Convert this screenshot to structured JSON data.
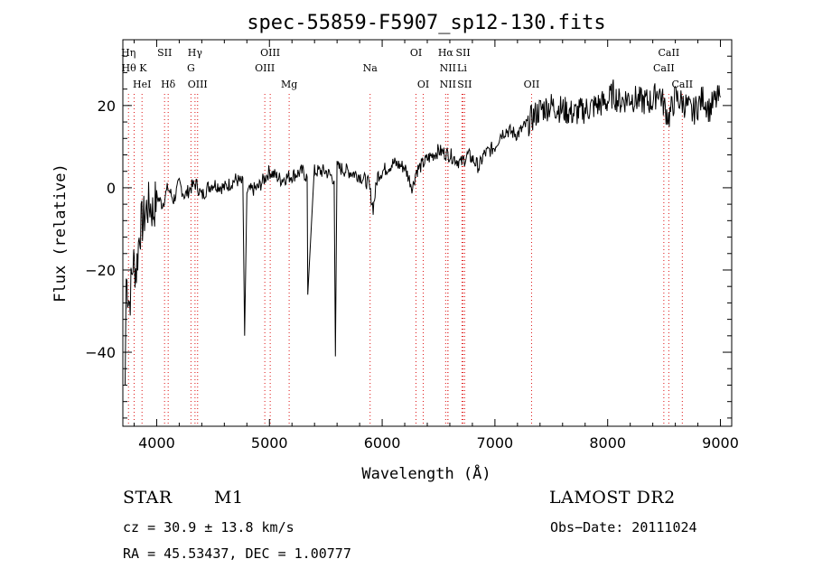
{
  "chart_data": {
    "type": "line",
    "title": "spec-55859-F5907_sp12-130.fits",
    "xlabel": "Wavelength (Å)",
    "ylabel": "Flux (relative)",
    "xlim": [
      3700,
      9100
    ],
    "ylim": [
      -58,
      36
    ],
    "x_ticks": [
      4000,
      5000,
      6000,
      7000,
      8000,
      9000
    ],
    "x_tick_labels": [
      "4000",
      "5000",
      "6000",
      "7000",
      "8000",
      "9000"
    ],
    "y_ticks": [
      -40,
      -20,
      0,
      20
    ],
    "y_tick_labels": [
      "−40",
      "−20",
      "0",
      "20"
    ],
    "series": [
      {
        "x": [
          3700,
          3730,
          3760,
          3790,
          3820,
          3850,
          3880,
          3910,
          3940,
          3970,
          4000,
          4050,
          4100,
          4150,
          4200,
          4250,
          4300,
          4350,
          4400,
          4450,
          4500,
          4600,
          4700,
          4770,
          4800,
          4900,
          5000,
          5100,
          5200,
          5300,
          5340,
          5400,
          5500,
          5580,
          5600,
          5700,
          5800,
          5880,
          5920,
          5960,
          6000,
          6100,
          6200,
          6270,
          6300,
          6400,
          6500,
          6600,
          6700,
          6760,
          6800,
          6860,
          6900,
          7000,
          7050,
          7100,
          7200,
          7300,
          7400,
          7500,
          7600,
          7700,
          7800,
          7900,
          8000,
          8050,
          8100,
          8200,
          8300,
          8400,
          8450,
          8500,
          8540,
          8600,
          8650,
          8700,
          8750,
          8800,
          8850,
          8900,
          8950,
          9000
        ],
        "y": [
          -30,
          -22,
          -28,
          -18,
          -20,
          -10,
          -8,
          -5,
          -4,
          -6,
          -2,
          -4,
          0,
          -3,
          1,
          -2,
          0,
          1,
          -2,
          0,
          1,
          0,
          2,
          1,
          -1,
          0,
          4,
          2,
          3,
          4,
          2,
          4,
          4,
          2,
          5,
          4,
          3,
          1,
          -5,
          3,
          4,
          6,
          5,
          0,
          4,
          7,
          9,
          8,
          6,
          8,
          7,
          5,
          8,
          10,
          13,
          14,
          13,
          16,
          19,
          20,
          19,
          18,
          19,
          20,
          21,
          23,
          21,
          22,
          21,
          21,
          24,
          20,
          17,
          22,
          21,
          20,
          18,
          20,
          22,
          19,
          21,
          22
        ],
        "absorption_dips": [
          {
            "x": 4780,
            "y": -36
          },
          {
            "x": 5340,
            "y": -26
          },
          {
            "x": 5585,
            "y": -41
          },
          {
            "x": 3720,
            "y": -48
          }
        ]
      }
    ],
    "line_markers": [
      {
        "x": 3750,
        "label": "Hη",
        "row": 0
      },
      {
        "x": 3800,
        "label": "Hθ K",
        "row": 1
      },
      {
        "x": 3870,
        "label": "HeI",
        "row": 2
      },
      {
        "x": 4070,
        "label": "SII",
        "row": 0
      },
      {
        "x": 4102,
        "label": "Hδ",
        "row": 2
      },
      {
        "x": 4340,
        "label": "Hγ",
        "row": 0
      },
      {
        "x": 4304,
        "label": "G",
        "row": 1
      },
      {
        "x": 4363,
        "label": "OIII",
        "row": 2
      },
      {
        "x": 5007,
        "label": "OIII",
        "row": 0
      },
      {
        "x": 4959,
        "label": "OIII",
        "row": 1
      },
      {
        "x": 5175,
        "label": "Mg",
        "row": 2
      },
      {
        "x": 5893,
        "label": "Na",
        "row": 1
      },
      {
        "x": 6300,
        "label": "OI",
        "row": 0
      },
      {
        "x": 6364,
        "label": "OI",
        "row": 2
      },
      {
        "x": 6563,
        "label": "Hα",
        "row": 0
      },
      {
        "x": 6717,
        "label": "SII",
        "row": 0
      },
      {
        "x": 6583,
        "label": "NII",
        "row": 1
      },
      {
        "x": 6708,
        "label": "Li",
        "row": 1
      },
      {
        "x": 6583,
        "label": "NII",
        "row": 2
      },
      {
        "x": 6731,
        "label": "SII",
        "row": 2
      },
      {
        "x": 7325,
        "label": "OII",
        "row": 2
      },
      {
        "x": 8542,
        "label": "CaII",
        "row": 0
      },
      {
        "x": 8498,
        "label": "CaII",
        "row": 1
      },
      {
        "x": 8662,
        "label": "CaII",
        "row": 2
      }
    ]
  },
  "info": {
    "object_class": "STAR",
    "subclass": "M1",
    "survey": "LAMOST DR2",
    "redshift": "cz = 30.9 ± 13.8 km/s",
    "obs_date": "Obs−Date: 20111024",
    "coords": "RA =  45.53437, DEC =   1.00777"
  }
}
